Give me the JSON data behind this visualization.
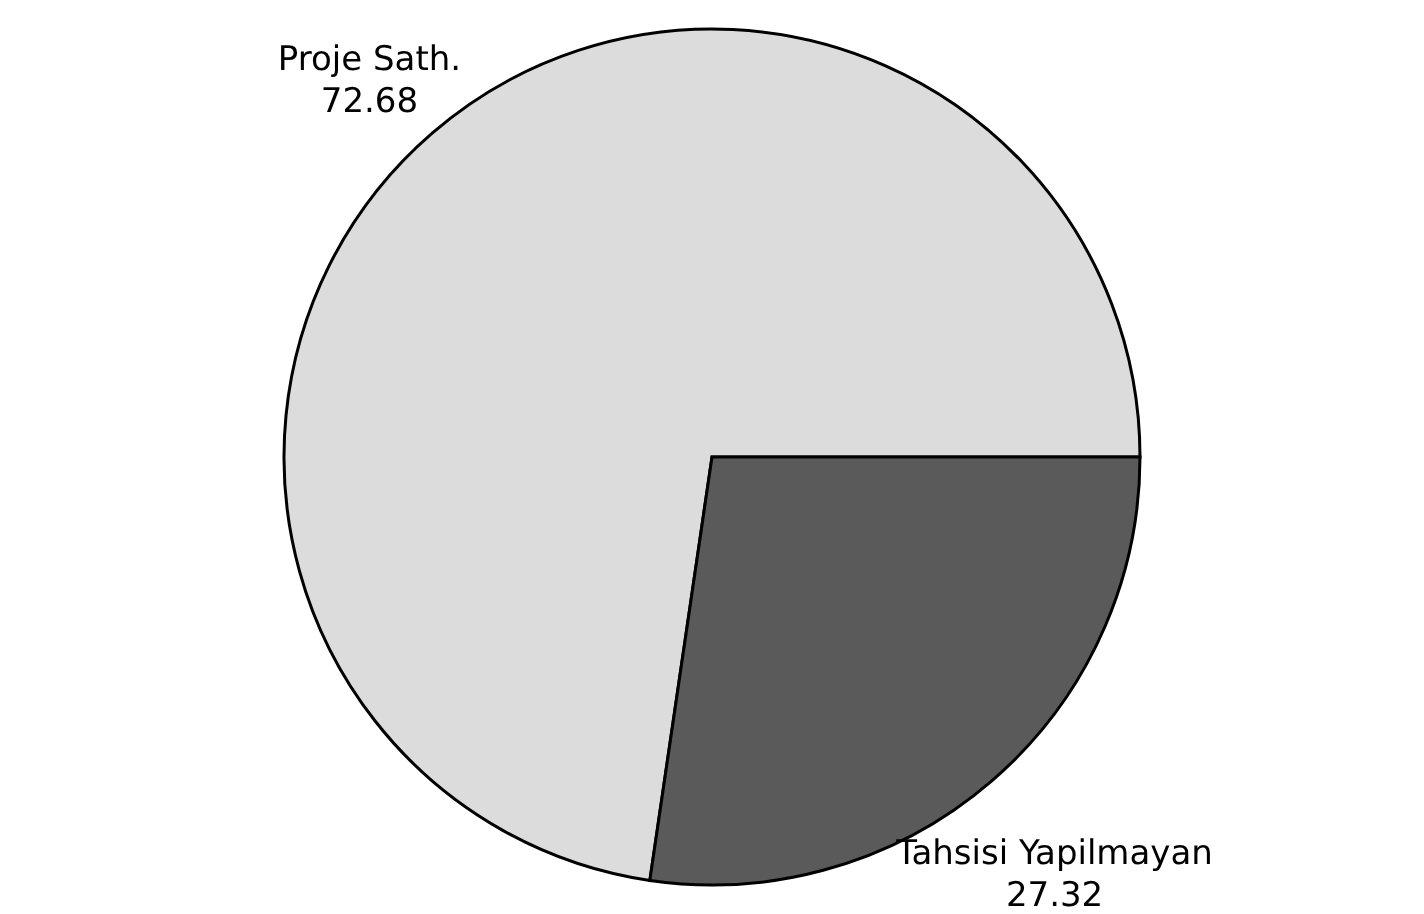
{
  "chart_data": {
    "type": "pie",
    "categories": [
      "Proje Sath.",
      "Tahsisi Yapilmayan"
    ],
    "values": [
      72.68,
      27.32
    ],
    "colors": [
      "#dcdcdc",
      "#5a5a5a"
    ],
    "data_labels": true
  }
}
